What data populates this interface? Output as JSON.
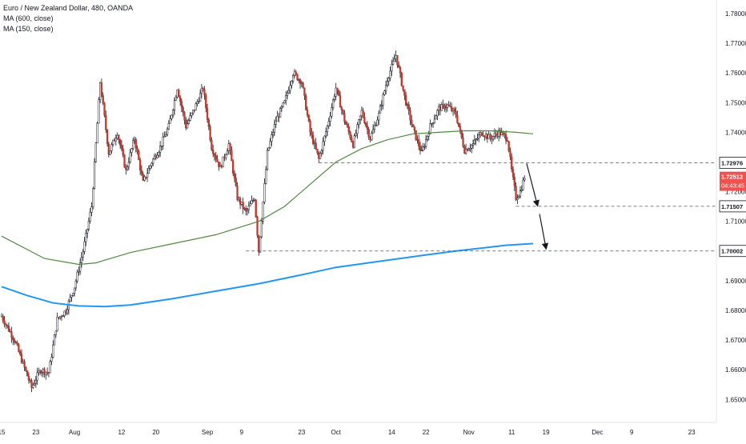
{
  "legend": {
    "title": "Euro / New Zealand Dollar, 480, OANDA",
    "ma1": "MA (600, close)",
    "ma2": "MA (150, close)"
  },
  "colors": {
    "up": "#ffffff",
    "down": "#c0392b",
    "wick": "#131722",
    "ma150": "#4e8a3e",
    "ma600": "#2196f3",
    "axis_text": "#131722",
    "grid_dash": "#555555",
    "price_tag": "#ef5350"
  },
  "chart_data": {
    "type": "candlestick",
    "symbol": "EUR/NZD",
    "timeframe": "480",
    "y_range": [
      1.644,
      1.783
    ],
    "y_ticks": [
      "1.78000",
      "1.77000",
      "1.76000",
      "1.75000",
      "1.74000",
      "1.73000",
      "1.72000",
      "1.71000",
      "1.70000",
      "1.69000",
      "1.68000",
      "1.67000",
      "1.66000",
      "1.65000"
    ],
    "x_ticks": [
      {
        "label": "15",
        "day": 0
      },
      {
        "label": "23",
        "day": 8
      },
      {
        "label": "Aug",
        "day": 17
      },
      {
        "label": "12",
        "day": 28
      },
      {
        "label": "20",
        "day": 36
      },
      {
        "label": "Sep",
        "day": 48
      },
      {
        "label": "9",
        "day": 56
      },
      {
        "label": "23",
        "day": 70
      },
      {
        "label": "Oct",
        "day": 78
      },
      {
        "label": "14",
        "day": 91
      },
      {
        "label": "22",
        "day": 99
      },
      {
        "label": "Nov",
        "day": 109
      },
      {
        "label": "11",
        "day": 119
      },
      {
        "label": "19",
        "day": 127
      },
      {
        "label": "Dec",
        "day": 139
      },
      {
        "label": "9",
        "day": 147
      },
      {
        "label": "23",
        "day": 161
      }
    ],
    "price_path": [
      [
        0,
        1.678
      ],
      [
        3,
        1.67
      ],
      [
        6,
        1.658
      ],
      [
        7,
        1.654
      ],
      [
        9,
        1.66
      ],
      [
        11,
        1.659
      ],
      [
        13,
        1.677
      ],
      [
        15,
        1.68
      ],
      [
        17,
        1.688
      ],
      [
        19,
        1.7
      ],
      [
        21,
        1.715
      ],
      [
        23,
        1.757
      ],
      [
        25,
        1.733
      ],
      [
        27,
        1.74
      ],
      [
        29,
        1.727
      ],
      [
        31,
        1.738
      ],
      [
        33,
        1.723
      ],
      [
        35,
        1.73
      ],
      [
        37,
        1.735
      ],
      [
        39,
        1.742
      ],
      [
        41,
        1.755
      ],
      [
        43,
        1.742
      ],
      [
        45,
        1.748
      ],
      [
        47,
        1.755
      ],
      [
        49,
        1.735
      ],
      [
        51,
        1.728
      ],
      [
        53,
        1.736
      ],
      [
        55,
        1.718
      ],
      [
        57,
        1.713
      ],
      [
        59,
        1.718
      ],
      [
        60,
        1.7
      ],
      [
        62,
        1.733
      ],
      [
        64,
        1.744
      ],
      [
        66,
        1.75
      ],
      [
        68,
        1.76
      ],
      [
        70,
        1.757
      ],
      [
        72,
        1.74
      ],
      [
        74,
        1.731
      ],
      [
        76,
        1.742
      ],
      [
        78,
        1.755
      ],
      [
        80,
        1.744
      ],
      [
        82,
        1.736
      ],
      [
        84,
        1.747
      ],
      [
        86,
        1.738
      ],
      [
        88,
        1.746
      ],
      [
        90,
        1.758
      ],
      [
        92,
        1.766
      ],
      [
        94,
        1.752
      ],
      [
        96,
        1.741
      ],
      [
        98,
        1.733
      ],
      [
        100,
        1.742
      ],
      [
        102,
        1.748
      ],
      [
        104,
        1.749
      ],
      [
        106,
        1.746
      ],
      [
        108,
        1.734
      ],
      [
        110,
        1.736
      ],
      [
        112,
        1.74
      ],
      [
        114,
        1.738
      ],
      [
        116,
        1.74
      ],
      [
        118,
        1.738
      ],
      [
        119,
        1.727
      ],
      [
        120,
        1.718
      ],
      [
        121,
        1.72
      ],
      [
        122,
        1.725
      ]
    ],
    "ma150": [
      [
        0,
        1.705
      ],
      [
        10,
        1.6975
      ],
      [
        18,
        1.6955
      ],
      [
        22,
        1.696
      ],
      [
        30,
        1.6995
      ],
      [
        40,
        1.7025
      ],
      [
        50,
        1.7055
      ],
      [
        60,
        1.71
      ],
      [
        66,
        1.715
      ],
      [
        72,
        1.7225
      ],
      [
        78,
        1.73
      ],
      [
        84,
        1.7345
      ],
      [
        90,
        1.7375
      ],
      [
        96,
        1.7395
      ],
      [
        102,
        1.74
      ],
      [
        108,
        1.7405
      ],
      [
        114,
        1.7405
      ],
      [
        120,
        1.74
      ],
      [
        124,
        1.7395
      ]
    ],
    "ma600": [
      [
        0,
        1.688
      ],
      [
        6,
        1.685
      ],
      [
        12,
        1.6825
      ],
      [
        18,
        1.6815
      ],
      [
        24,
        1.6813
      ],
      [
        30,
        1.6818
      ],
      [
        40,
        1.684
      ],
      [
        50,
        1.6865
      ],
      [
        60,
        1.689
      ],
      [
        70,
        1.692
      ],
      [
        78,
        1.6945
      ],
      [
        88,
        1.6965
      ],
      [
        98,
        1.6985
      ],
      [
        106,
        1.7
      ],
      [
        112,
        1.701
      ],
      [
        118,
        1.702
      ],
      [
        124,
        1.7025
      ]
    ],
    "levels": [
      {
        "label": "1.72976",
        "value": 1.72976,
        "from_day": 74
      },
      {
        "label": "1.71507",
        "value": 1.71507,
        "from_day": 120
      },
      {
        "label": "1.70002",
        "value": 1.70002,
        "from_day": 57
      }
    ],
    "current_price": {
      "label": "1.72512",
      "value": 1.72512
    },
    "countdown": {
      "label": "04:43:45"
    },
    "arrows": [
      {
        "from": [
          122.5,
          1.7295
        ],
        "to": [
          125,
          1.7155
        ]
      },
      {
        "from": [
          125.5,
          1.7125
        ],
        "to": [
          127,
          1.701
        ]
      }
    ]
  }
}
